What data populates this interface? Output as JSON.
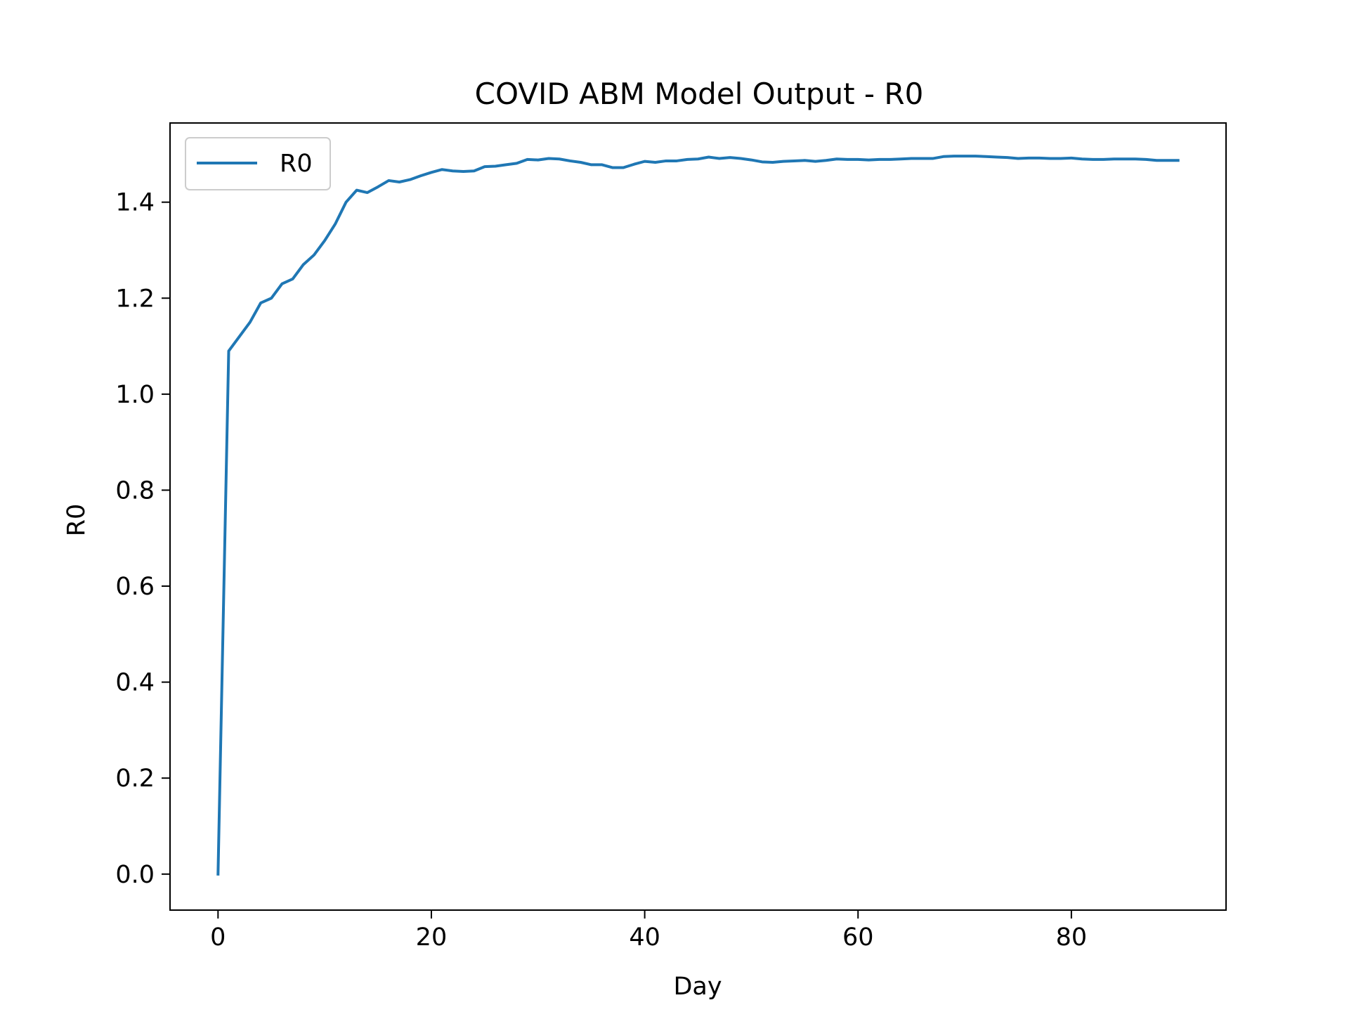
{
  "chart_data": {
    "type": "line",
    "title": "COVID ABM Model Output - R0",
    "xlabel": "Day",
    "ylabel": "R0",
    "xlim": [
      -4.5,
      94.5
    ],
    "ylim": [
      -0.075,
      1.565
    ],
    "xticks": [
      0,
      20,
      40,
      60,
      80
    ],
    "xtick_labels": [
      "0",
      "20",
      "40",
      "60",
      "80"
    ],
    "yticks": [
      0.0,
      0.2,
      0.4,
      0.6,
      0.8,
      1.0,
      1.2,
      1.4
    ],
    "ytick_labels": [
      "0.0",
      "0.2",
      "0.4",
      "0.6",
      "0.8",
      "1.0",
      "1.2",
      "1.4"
    ],
    "grid": false,
    "legend": {
      "position": "top-left"
    },
    "series": [
      {
        "name": "R0",
        "color": "#1f77b4",
        "x": [
          0,
          1,
          2,
          3,
          4,
          5,
          6,
          7,
          8,
          9,
          10,
          11,
          12,
          13,
          14,
          15,
          16,
          17,
          18,
          19,
          20,
          21,
          22,
          23,
          24,
          25,
          26,
          27,
          28,
          29,
          30,
          31,
          32,
          33,
          34,
          35,
          36,
          37,
          38,
          39,
          40,
          41,
          42,
          43,
          44,
          45,
          46,
          47,
          48,
          49,
          50,
          51,
          52,
          53,
          54,
          55,
          56,
          57,
          58,
          59,
          60,
          61,
          62,
          63,
          64,
          65,
          66,
          67,
          68,
          69,
          70,
          71,
          72,
          73,
          74,
          75,
          76,
          77,
          78,
          79,
          80,
          81,
          82,
          83,
          84,
          85,
          86,
          87,
          88,
          89,
          90
        ],
        "y": [
          0.0,
          1.09,
          1.12,
          1.15,
          1.19,
          1.2,
          1.23,
          1.24,
          1.27,
          1.29,
          1.32,
          1.355,
          1.4,
          1.425,
          1.42,
          1.432,
          1.445,
          1.442,
          1.447,
          1.455,
          1.462,
          1.468,
          1.465,
          1.464,
          1.465,
          1.474,
          1.475,
          1.478,
          1.481,
          1.489,
          1.488,
          1.491,
          1.49,
          1.486,
          1.483,
          1.478,
          1.478,
          1.472,
          1.472,
          1.479,
          1.485,
          1.483,
          1.486,
          1.486,
          1.489,
          1.49,
          1.494,
          1.491,
          1.493,
          1.491,
          1.488,
          1.484,
          1.483,
          1.485,
          1.486,
          1.487,
          1.485,
          1.487,
          1.49,
          1.489,
          1.489,
          1.488,
          1.489,
          1.489,
          1.49,
          1.491,
          1.491,
          1.491,
          1.495,
          1.496,
          1.496,
          1.496,
          1.495,
          1.494,
          1.493,
          1.491,
          1.492,
          1.492,
          1.491,
          1.491,
          1.492,
          1.49,
          1.489,
          1.489,
          1.49,
          1.49,
          1.49,
          1.489,
          1.487,
          1.487,
          1.487
        ]
      }
    ]
  }
}
